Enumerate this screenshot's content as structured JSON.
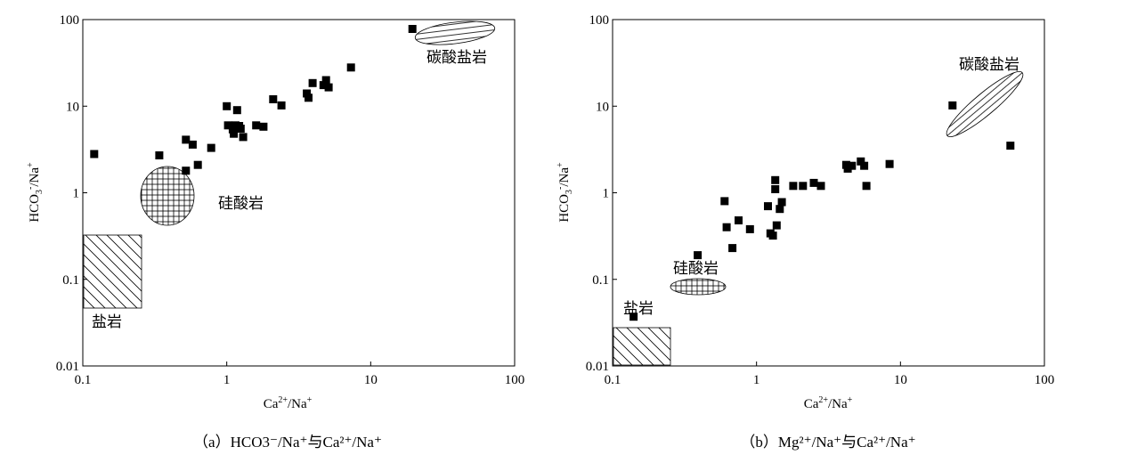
{
  "chart_data": [
    {
      "type": "scatter",
      "panel": "a",
      "caption": "（a）HCO3⁻/Na⁺与Ca²⁺/Na⁺",
      "xlabel": "Ca²⁺/Na⁺",
      "ylabel": "HCO₃⁻/Na⁺",
      "xscale": "log",
      "yscale": "log",
      "xlim": [
        0.1,
        100
      ],
      "ylim": [
        0.01,
        100
      ],
      "xticks": [
        "0.1",
        "1",
        "10",
        "100"
      ],
      "yticks": [
        "0.01",
        "0.1",
        "1",
        "10",
        "100"
      ],
      "grid": false,
      "regions": [
        {
          "label": "碳酸盐岩",
          "pattern": "horizontal",
          "shape": "ellipse"
        },
        {
          "label": "硅酸岩",
          "pattern": "grid",
          "shape": "ellipse"
        },
        {
          "label": "盐岩",
          "pattern": "diagonal",
          "shape": "rect"
        }
      ],
      "points": [
        [
          0.12,
          2.8
        ],
        [
          0.34,
          2.7
        ],
        [
          0.52,
          1.8
        ],
        [
          0.52,
          4.1
        ],
        [
          0.58,
          3.6
        ],
        [
          0.63,
          2.1
        ],
        [
          0.78,
          3.3
        ],
        [
          1.0,
          10.0
        ],
        [
          1.02,
          6.0
        ],
        [
          1.1,
          5.4
        ],
        [
          1.12,
          4.8
        ],
        [
          1.15,
          6.0
        ],
        [
          1.18,
          9.0
        ],
        [
          1.22,
          5.9
        ],
        [
          1.25,
          5.5
        ],
        [
          1.3,
          4.4
        ],
        [
          1.6,
          6.0
        ],
        [
          1.8,
          5.8
        ],
        [
          2.1,
          12.0
        ],
        [
          2.4,
          10.2
        ],
        [
          3.6,
          14.0
        ],
        [
          3.7,
          12.5
        ],
        [
          3.95,
          18.5
        ],
        [
          4.7,
          17.5
        ],
        [
          4.9,
          20.0
        ],
        [
          5.1,
          16.5
        ],
        [
          7.3,
          28.0
        ],
        [
          19.5,
          78.0
        ]
      ]
    },
    {
      "type": "scatter",
      "panel": "b",
      "caption": "（b）Mg²⁺/Na⁺与Ca²⁺/Na⁺",
      "xlabel": "Ca²⁺/Na⁺",
      "ylabel": "HCO₃⁻/Na⁺",
      "xscale": "log",
      "yscale": "log",
      "xlim": [
        0.1,
        100
      ],
      "ylim": [
        0.01,
        100
      ],
      "xticks": [
        "0.1",
        "1",
        "10",
        "100"
      ],
      "yticks": [
        "0.01",
        "0.1",
        "1",
        "10",
        "100"
      ],
      "grid": false,
      "regions": [
        {
          "label": "碳酸盐岩",
          "pattern": "horizontal",
          "shape": "ellipse"
        },
        {
          "label": "硅酸岩",
          "pattern": "grid",
          "shape": "ellipse"
        },
        {
          "label": "盐岩",
          "pattern": "diagonal",
          "shape": "rect"
        }
      ],
      "points": [
        [
          0.14,
          0.037
        ],
        [
          0.39,
          0.19
        ],
        [
          0.6,
          0.8
        ],
        [
          0.62,
          0.4
        ],
        [
          0.68,
          0.23
        ],
        [
          0.75,
          0.48
        ],
        [
          0.9,
          0.38
        ],
        [
          1.2,
          0.7
        ],
        [
          1.25,
          0.34
        ],
        [
          1.3,
          0.32
        ],
        [
          1.35,
          1.4
        ],
        [
          1.35,
          1.1
        ],
        [
          1.38,
          0.42
        ],
        [
          1.45,
          0.65
        ],
        [
          1.5,
          0.78
        ],
        [
          1.8,
          1.2
        ],
        [
          2.1,
          1.2
        ],
        [
          2.5,
          1.3
        ],
        [
          2.8,
          1.2
        ],
        [
          4.2,
          2.1
        ],
        [
          4.3,
          1.9
        ],
        [
          4.6,
          2.05
        ],
        [
          5.3,
          2.3
        ],
        [
          5.6,
          2.05
        ],
        [
          5.8,
          1.2
        ],
        [
          8.4,
          2.15
        ],
        [
          23.0,
          10.2
        ],
        [
          58.0,
          3.5
        ]
      ]
    }
  ]
}
